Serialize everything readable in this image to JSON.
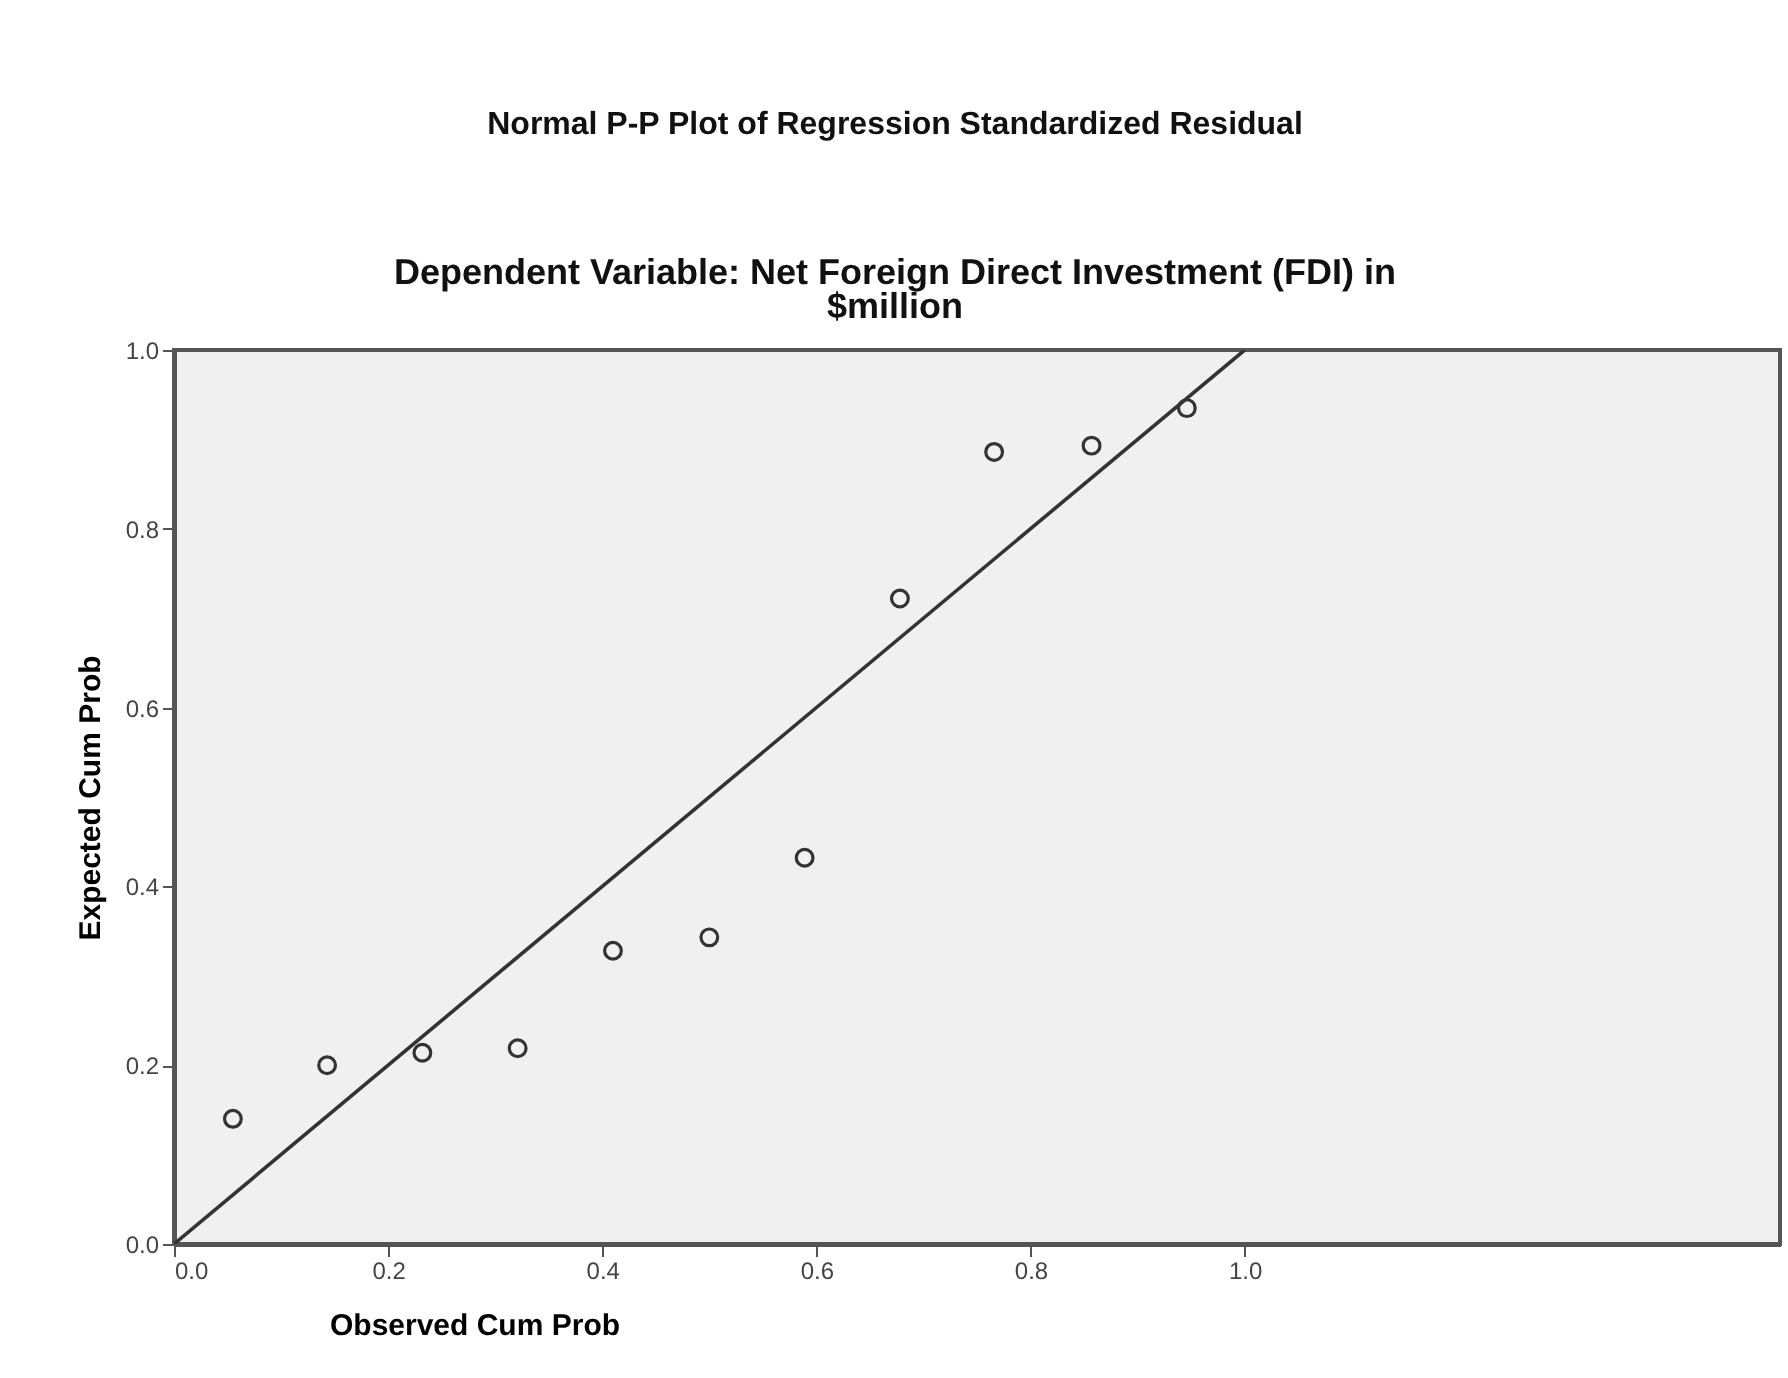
{
  "chart_data": {
    "type": "scatter",
    "title": "Normal P-P Plot of Regression Standardized Residual",
    "subtitle": "Dependent Variable: Net Foreign Direct Investment (FDI) in $million",
    "xlabel": "Observed Cum Prob",
    "ylabel": "Expected Cum Prob",
    "xlim": [
      0,
      1.5
    ],
    "xticks": [
      {
        "value": 0,
        "label": "0.0"
      },
      0.2,
      0.4,
      0.6,
      0.8,
      {
        "value": 1,
        "label": "1.0"
      }
    ],
    "ylim": [
      0,
      1
    ],
    "yticks": [
      {
        "value": 0,
        "label": "0.0"
      },
      0.2,
      0.4,
      0.6,
      0.8,
      {
        "value": 1,
        "label": "1.0"
      }
    ],
    "grid": false,
    "marker": "circle",
    "series": [
      {
        "color": "#333333",
        "x": [
          0.055,
          0.143,
          0.232,
          0.321,
          0.41,
          0.5,
          0.589,
          0.678,
          0.766,
          0.857,
          0.946
        ],
        "values": [
          0.14,
          0.2,
          0.214,
          0.219,
          0.328,
          0.343,
          0.432,
          0.722,
          0.886,
          0.893,
          0.935
        ]
      },
      {
        "type": "line",
        "color": "#333333",
        "line_style": "solid",
        "marker": "none",
        "x": [
          0,
          1
        ],
        "values": [
          0,
          1
        ]
      }
    ]
  }
}
